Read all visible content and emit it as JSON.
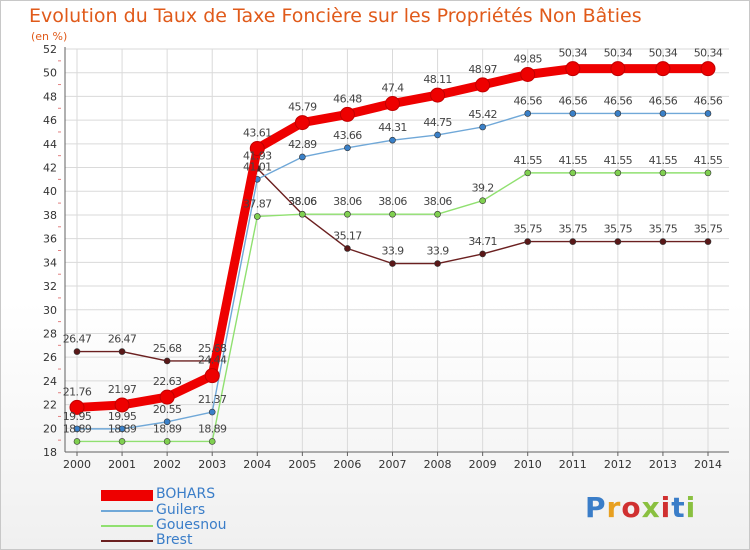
{
  "title": "Evolution du Taux de Taxe Foncière sur les Propriétés Non Bâties",
  "unit": "(en %)",
  "brand": {
    "text": "Proxiti",
    "letter_colors": [
      "#3a7dc8",
      "#e8a020",
      "#d03030",
      "#8ac040",
      "#d03030",
      "#3a7dc8",
      "#8ac040"
    ]
  },
  "colors": {
    "grid": "#dadada",
    "axis": "#606060",
    "tick_label": "#333333",
    "value_label": "#444444",
    "dash_tick": "#e08080"
  },
  "chart_data": {
    "type": "line",
    "title": "Evolution du Taux de Taxe Foncière sur les Propriétés Non Bâties",
    "ylabel": "(en %)",
    "xlabel": "",
    "x": [
      "2000",
      "2001",
      "2002",
      "2003",
      "2004",
      "2005",
      "2006",
      "2007",
      "2008",
      "2009",
      "2010",
      "2011",
      "2012",
      "2013",
      "2014"
    ],
    "ylim": [
      18,
      52
    ],
    "yticks": [
      18,
      20,
      22,
      24,
      26,
      28,
      30,
      32,
      34,
      36,
      38,
      40,
      42,
      44,
      46,
      48,
      50,
      52
    ],
    "grid": true,
    "legend_position": "bottom-left",
    "series": [
      {
        "name": "Brest",
        "color": "#6b2020",
        "fill": "#5a1818",
        "values": [
          26.47,
          26.47,
          25.68,
          25.68,
          41.93,
          38.06,
          35.17,
          33.9,
          33.9,
          34.71,
          35.75,
          35.75,
          35.75,
          35.75,
          35.75
        ],
        "labels": [
          "26.47",
          "26.47",
          "25.68",
          "25.68",
          "41.93",
          "38.06",
          "35.17",
          "33.9",
          "33.9",
          "34.71",
          "35.75",
          "35.75",
          "35.75",
          "35.75",
          "35.75"
        ]
      },
      {
        "name": "Gouesnou",
        "color": "#90e070",
        "fill": "#80d050",
        "values": [
          18.89,
          18.89,
          18.89,
          18.89,
          37.87,
          38.06,
          38.06,
          38.06,
          38.06,
          39.2,
          41.55,
          41.55,
          41.55,
          41.55,
          41.55
        ],
        "labels": [
          "18.89",
          "18.89",
          "18.89",
          "18.89",
          "37.87",
          "38.06",
          "38.06",
          "38.06",
          "38.06",
          "39.2",
          "41.55",
          "41.55",
          "41.55",
          "41.55",
          "41.55"
        ]
      },
      {
        "name": "Guilers",
        "color": "#70a8d8",
        "fill": "#3a80c8",
        "values": [
          19.95,
          19.95,
          20.55,
          21.37,
          41.01,
          42.89,
          43.66,
          44.31,
          44.75,
          45.42,
          46.56,
          46.56,
          46.56,
          46.56,
          46.56
        ],
        "labels": [
          "19.95",
          "19.95",
          "20.55",
          "21.37",
          "41.01",
          "42.89",
          "43.66",
          "44.31",
          "44.75",
          "45.42",
          "46.56",
          "46.56",
          "46.56",
          "46.56",
          "46.56"
        ]
      },
      {
        "name": "BOHARS",
        "color": "#ee0000",
        "fill": "#ee0000",
        "values": [
          21.76,
          21.97,
          22.63,
          24.44,
          43.61,
          45.79,
          46.48,
          47.4,
          48.11,
          48.97,
          49.85,
          50.34,
          50.34,
          50.34,
          50.34
        ],
        "labels": [
          "21.76",
          "21.97",
          "22.63",
          "24.44",
          "43.61",
          "45.79",
          "46.48",
          "47.4",
          "48.11",
          "48.97",
          "49.85",
          "50.34",
          "50.34",
          "50.34",
          "50.34"
        ]
      }
    ]
  },
  "legend": [
    {
      "name": "BOHARS",
      "color": "#ee0000",
      "weight": "thick"
    },
    {
      "name": "Guilers",
      "color": "#70a8d8",
      "weight": "thin"
    },
    {
      "name": "Gouesnou",
      "color": "#90e070",
      "weight": "thin"
    },
    {
      "name": "Brest",
      "color": "#6b2020",
      "weight": "thin"
    }
  ]
}
